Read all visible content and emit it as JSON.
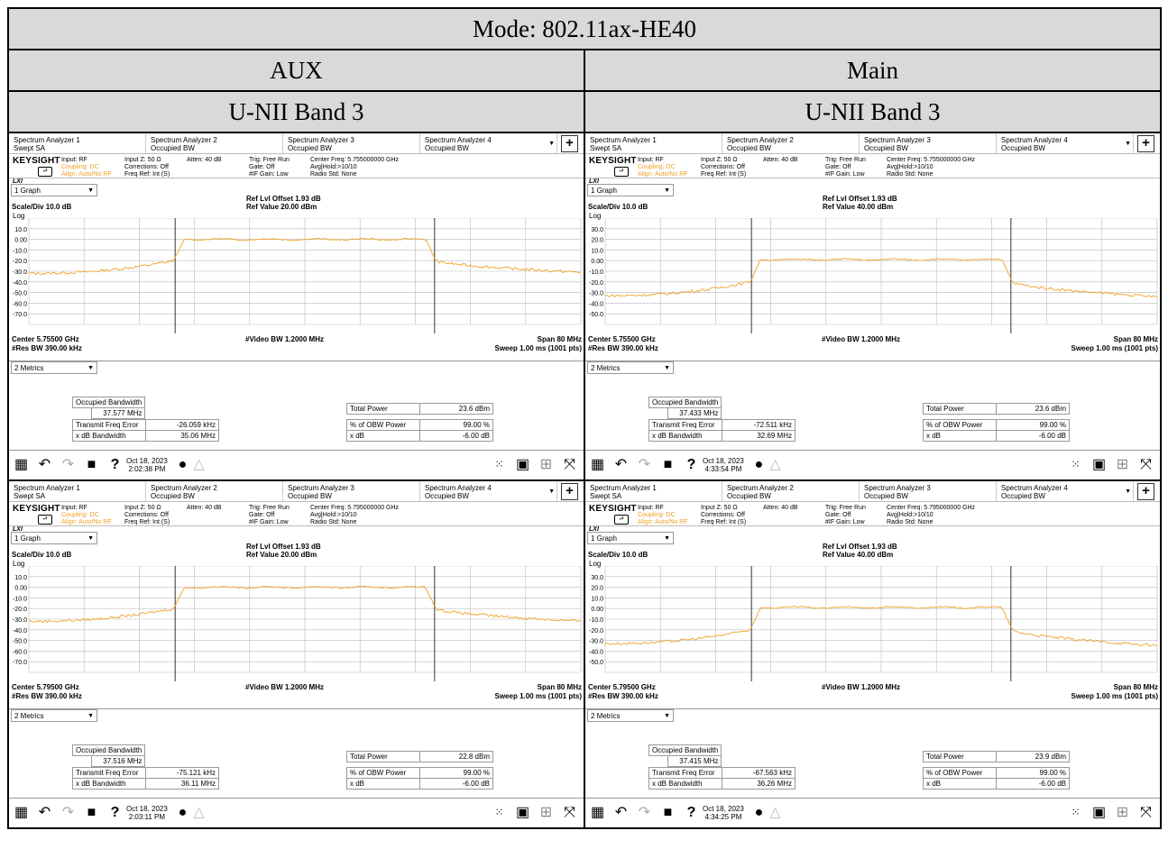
{
  "mode": "Mode: 802.11ax-HE40",
  "columns": [
    {
      "antenna": "AUX",
      "band": "U-NII Band 3"
    },
    {
      "antenna": "Main",
      "band": "U-NII Band 3"
    }
  ],
  "common": {
    "tabs": [
      {
        "title": "Spectrum Analyzer 1",
        "sub": "Swept SA"
      },
      {
        "title": "Spectrum Analyzer 2",
        "sub": "Occupied BW"
      },
      {
        "title": "Spectrum Analyzer 3",
        "sub": "Occupied BW"
      },
      {
        "title": "Spectrum Analyzer 4",
        "sub": "Occupied BW"
      }
    ],
    "brand": "KEYSIGHT",
    "lxi": "LXI",
    "input": [
      "Input: RF",
      "Coupling: DC",
      "Align: Auto/No RF"
    ],
    "input2": [
      "Input Z: 50 Ω",
      "Corrections: Off",
      "Freq Ref: Int (S)"
    ],
    "atten": "Atten: 40 dB",
    "trig": [
      "Trig: Free Run",
      "Gate: Off",
      "#IF Gain: Low"
    ],
    "avg": "Avg|Hold:>10/10",
    "radio": "Radio Std: None",
    "graph_select": "1 Graph",
    "ref_offset": "Ref Lvl Offset 1.93 dB",
    "scale": "Scale/Div 10.0 dB",
    "log": "Log",
    "vbw": "#Video BW 1.2000 MHz",
    "rbw": "#Res BW 390.00 kHz",
    "span": "Span 80 MHz",
    "sweep": "Sweep 1.00 ms (1001 pts)",
    "metrics_select": "2 Metrics",
    "labels": {
      "obw": "Occupied Bandwidth",
      "tfe": "Transmit Freq Error",
      "xdbbw": "x dB Bandwidth",
      "tp": "Total Power",
      "pct": "% of OBW Power",
      "xdb": "x dB"
    },
    "pct_value": "99.00 %",
    "xdb_value": "-6.00 dB",
    "plus": "+",
    "trace_color": "#f0a028"
  },
  "panels": [
    {
      "center_freq_setting": "Center Freq: 5.755000000 GHz",
      "ref_value": "Ref Value 20.00 dBm",
      "center": "Center 5.75500 GHz",
      "y_ticks": [
        "10.0",
        "0.00",
        "-10.0",
        "-20.0",
        "-30.0",
        "-40.0",
        "-50.0",
        "-60.0",
        "-70.0"
      ],
      "obw": "37.577 MHz",
      "tfe": "-26.059 kHz",
      "xdbbw": "35.06 MHz",
      "tp": "23.6 dBm",
      "date": "Oct 18, 2023",
      "time": "2:02:38 PM",
      "chart_data": {
        "type": "line",
        "ref_level_dbm": 20,
        "scale_div_db": 10,
        "span_mhz": 80,
        "center_ghz": 5.755,
        "trace_dbm": {
          "noise_left": -32,
          "noise_rise": -20,
          "plateau": 0,
          "noise_right": -31
        }
      }
    },
    {
      "center_freq_setting": "Center Freq: 5.755000000 GHz",
      "ref_value": "Ref Value 40.00 dBm",
      "center": "Center 5.75500 GHz",
      "y_ticks": [
        "30.0",
        "20.0",
        "10.0",
        "0.00",
        "-10.0",
        "-20.0",
        "-30.0",
        "-40.0",
        "-50.0"
      ],
      "obw": "37.433 MHz",
      "tfe": "-72.511 kHz",
      "xdbbw": "32.69 MHz",
      "tp": "23.6 dBm",
      "date": "Oct 18, 2023",
      "time": "4:33:54 PM",
      "chart_data": {
        "type": "line",
        "ref_level_dbm": 40,
        "scale_div_db": 10,
        "span_mhz": 80,
        "center_ghz": 5.755,
        "trace_dbm": {
          "noise_left": -33,
          "noise_rise": -20,
          "plateau": 1,
          "noise_right": -34
        }
      }
    },
    {
      "center_freq_setting": "Center Freq: 5.795000000 GHz",
      "ref_value": "Ref Value 20.00 dBm",
      "center": "Center 5.79500 GHz",
      "y_ticks": [
        "10.0",
        "0.00",
        "-10.0",
        "-20.0",
        "-30.0",
        "-40.0",
        "-50.0",
        "-60.0",
        "-70.0"
      ],
      "obw": "37.516 MHz",
      "tfe": "-75.121 kHz",
      "xdbbw": "36.11 MHz",
      "tp": "22.8 dBm",
      "date": "Oct 18, 2023",
      "time": "2:03:11 PM",
      "chart_data": {
        "type": "line",
        "ref_level_dbm": 20,
        "scale_div_db": 10,
        "span_mhz": 80,
        "center_ghz": 5.795,
        "trace_dbm": {
          "noise_left": -32,
          "noise_rise": -20,
          "plateau": 0,
          "noise_right": -32
        }
      }
    },
    {
      "center_freq_setting": "Center Freq: 5.795000000 GHz",
      "ref_value": "Ref Value 40.00 dBm",
      "center": "Center 5.79500 GHz",
      "y_ticks": [
        "30.0",
        "20.0",
        "10.0",
        "0.00",
        "-10.0",
        "-20.0",
        "-30.0",
        "-40.0",
        "-50.0"
      ],
      "obw": "37.415 MHz",
      "tfe": "-67.563 kHz",
      "xdbbw": "36.26 MHz",
      "tp": "23.9 dBm",
      "date": "Oct 18, 2023",
      "time": "4:34:25 PM",
      "chart_data": {
        "type": "line",
        "ref_level_dbm": 40,
        "scale_div_db": 10,
        "span_mhz": 80,
        "center_ghz": 5.795,
        "trace_dbm": {
          "noise_left": -33,
          "noise_rise": -20,
          "plateau": 1,
          "noise_right": -35
        }
      }
    }
  ]
}
